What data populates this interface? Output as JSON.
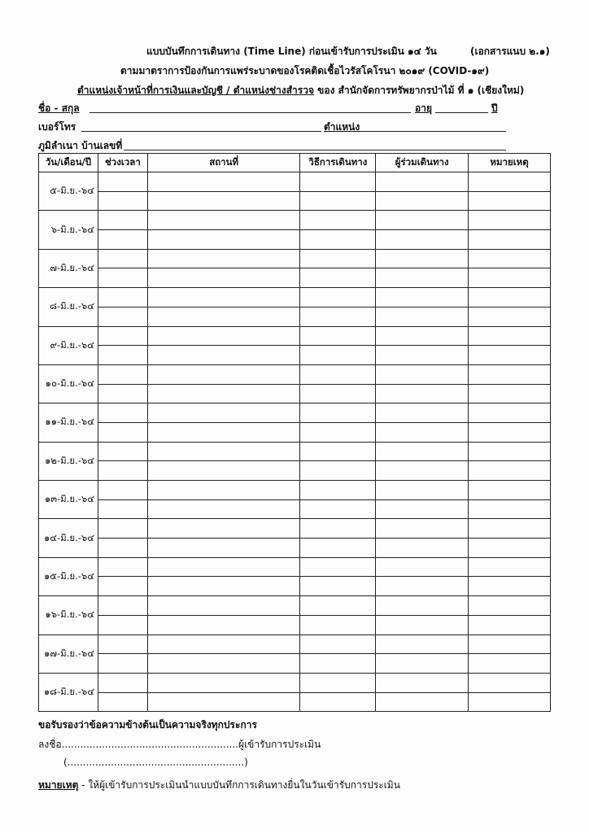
{
  "header": {
    "title": "แบบบันทึกการเดินทาง (Time Line) ก่อนเข้ารับการประเมิน ๑๔ วัน",
    "doc_ref": "(เอกสารแนบ ๒.๑)",
    "subtitle": "ตามมาตราการป้องกันการแพร่ระบาดของโรคติดเชื้อไวรัสโคโรนา ๒๐๑๙ (COVID-๑๙)",
    "position_underlined": "ตำแหน่งเจ้าหน้าที่การเงินและบัญชี / ตำแหน่งช่างสำรวจ",
    "position_rest": " ของ สำนักจัดการทรัพยากรป่าไม้ ที่ ๑ (เชียงใหม่)"
  },
  "fields": {
    "name_label": "ชื่อ - สกุล",
    "age_label": "อายุ",
    "years_label": "ปี",
    "phone_label": "เบอร์โทร",
    "position_label": "ตำแหน่ง",
    "address_label": "ภูมิลำเนา บ้านเลขที่"
  },
  "table": {
    "columns": [
      "วัน/เดือน/ปี",
      "ช่วงเวลา",
      "สถานที่",
      "วิธีการเดินทาง",
      "ผู้ร่วมเดินทาง",
      "หมายเหตุ"
    ],
    "dates": [
      "๕-มิ.ย.-๖๔",
      "๖-มิ.ย.-๖๔",
      "๗-มิ.ย.-๖๔",
      "๘-มิ.ย.-๖๔",
      "๙-มิ.ย.-๖๔",
      "๑๐-มิ.ย.-๖๔",
      "๑๑-มิ.ย.-๖๔",
      "๑๒-มิ.ย.-๖๔",
      "๑๓-มิ.ย.-๖๔",
      "๑๔-มิ.ย.-๖๔",
      "๑๕-มิ.ย.-๖๔",
      "๑๖-มิ.ย.-๖๔",
      "๑๗-มิ.ย.-๖๔",
      "๑๘-มิ.ย.-๖๔"
    ]
  },
  "footer": {
    "certify": "ขอรับรองว่าข้อความข้างต้นเป็นความจริงทุกประการ",
    "sign": "ลงชื่อ.........................................................ผู้เข้ารับการประเมิน",
    "sign_name": "(.........................................................)",
    "note_label": "หมายเหตุ",
    "note_text": " - ให้ผู้เข้ารับการประเมินนำแบบบันทึกการเดินทางยื่นในวันเข้ารับการประเมิน"
  }
}
